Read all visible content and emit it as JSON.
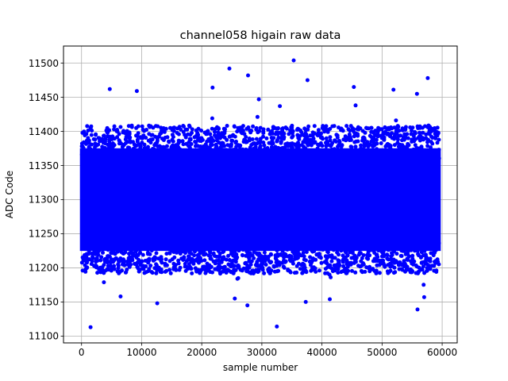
{
  "chart_data": {
    "type": "scatter",
    "title": "channel058 higain raw data",
    "xlabel": "sample number",
    "ylabel": "ADC Code",
    "xlim": [
      -3000,
      62500
    ],
    "ylim": [
      11090,
      11525
    ],
    "xticks": [
      0,
      10000,
      20000,
      30000,
      40000,
      50000,
      60000
    ],
    "yticks": [
      11100,
      11150,
      11200,
      11250,
      11300,
      11350,
      11400,
      11450,
      11500
    ],
    "grid": true,
    "series": [
      {
        "color": "#0000ff",
        "marker": "circle",
        "n_samples": 59500,
        "x_range": [
          0,
          59500
        ],
        "mean": 11300,
        "std": 35,
        "outliers": [
          [
            1500,
            11113
          ],
          [
            32500,
            11114
          ],
          [
            35300,
            11504
          ],
          [
            24600,
            11492
          ],
          [
            27700,
            11482
          ],
          [
            57600,
            11478
          ],
          [
            29500,
            11447
          ],
          [
            37600,
            11475
          ],
          [
            4700,
            11462
          ],
          [
            21800,
            11464
          ],
          [
            45300,
            11465
          ],
          [
            51900,
            11461
          ],
          [
            9200,
            11459
          ],
          [
            55800,
            11455
          ],
          [
            27600,
            11145
          ],
          [
            12600,
            11148
          ],
          [
            37300,
            11150
          ],
          [
            41300,
            11154
          ],
          [
            55900,
            11139
          ],
          [
            6500,
            11158
          ],
          [
            57000,
            11157
          ],
          [
            25500,
            11155
          ],
          [
            33000,
            11437
          ],
          [
            45600,
            11438
          ]
        ]
      }
    ]
  }
}
